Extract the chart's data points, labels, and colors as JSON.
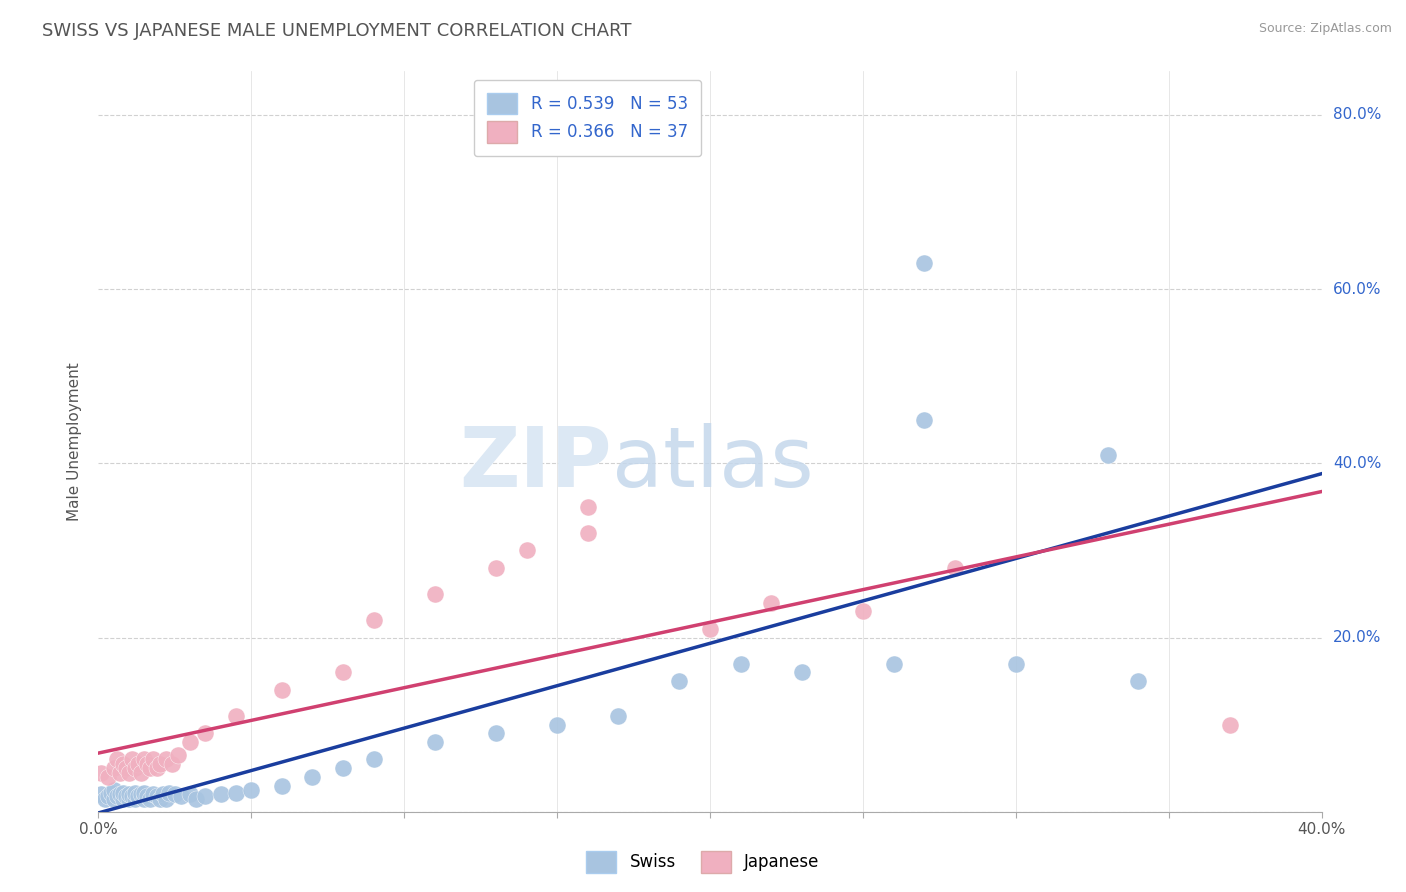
{
  "title": "SWISS VS JAPANESE MALE UNEMPLOYMENT CORRELATION CHART",
  "source": "Source: ZipAtlas.com",
  "ylabel": "Male Unemployment",
  "right_yticks": [
    "80.0%",
    "60.0%",
    "40.0%",
    "20.0%"
  ],
  "right_ytick_vals": [
    0.8,
    0.6,
    0.4,
    0.2
  ],
  "xmin": 0.0,
  "xmax": 0.4,
  "ymin": 0.0,
  "ymax": 0.85,
  "swiss_R": 0.539,
  "swiss_N": 53,
  "japanese_R": 0.366,
  "japanese_N": 37,
  "swiss_color": "#a8c4e0",
  "swiss_line_color": "#1a3d9e",
  "japanese_color": "#f0b0c0",
  "japanese_line_color": "#d04070",
  "legend_text_color": "#3366cc",
  "background_color": "#ffffff",
  "grid_color": "#cccccc",
  "title_color": "#555555",
  "swiss_x": [
    0.001,
    0.002,
    0.003,
    0.004,
    0.005,
    0.005,
    0.006,
    0.007,
    0.008,
    0.008,
    0.009,
    0.01,
    0.01,
    0.011,
    0.012,
    0.012,
    0.013,
    0.014,
    0.015,
    0.015,
    0.016,
    0.017,
    0.018,
    0.019,
    0.02,
    0.021,
    0.022,
    0.023,
    0.025,
    0.027,
    0.03,
    0.032,
    0.035,
    0.04,
    0.045,
    0.05,
    0.06,
    0.07,
    0.08,
    0.09,
    0.11,
    0.13,
    0.15,
    0.17,
    0.19,
    0.21,
    0.23,
    0.26,
    0.27,
    0.3,
    0.27,
    0.33,
    0.34
  ],
  "swiss_y": [
    0.02,
    0.015,
    0.018,
    0.022,
    0.015,
    0.025,
    0.018,
    0.02,
    0.015,
    0.022,
    0.018,
    0.015,
    0.02,
    0.018,
    0.015,
    0.022,
    0.018,
    0.02,
    0.015,
    0.022,
    0.018,
    0.015,
    0.02,
    0.018,
    0.015,
    0.02,
    0.015,
    0.022,
    0.02,
    0.018,
    0.02,
    0.015,
    0.018,
    0.02,
    0.022,
    0.025,
    0.03,
    0.04,
    0.05,
    0.06,
    0.08,
    0.09,
    0.1,
    0.11,
    0.15,
    0.17,
    0.16,
    0.17,
    0.63,
    0.17,
    0.45,
    0.41,
    0.15
  ],
  "japanese_x": [
    0.001,
    0.003,
    0.005,
    0.006,
    0.007,
    0.008,
    0.009,
    0.01,
    0.011,
    0.012,
    0.013,
    0.014,
    0.015,
    0.016,
    0.017,
    0.018,
    0.019,
    0.02,
    0.022,
    0.024,
    0.026,
    0.03,
    0.035,
    0.045,
    0.06,
    0.08,
    0.09,
    0.11,
    0.13,
    0.14,
    0.16,
    0.16,
    0.2,
    0.22,
    0.25,
    0.28,
    0.37
  ],
  "japanese_y": [
    0.045,
    0.04,
    0.05,
    0.06,
    0.045,
    0.055,
    0.05,
    0.045,
    0.06,
    0.05,
    0.055,
    0.045,
    0.06,
    0.055,
    0.05,
    0.06,
    0.05,
    0.055,
    0.06,
    0.055,
    0.065,
    0.08,
    0.09,
    0.11,
    0.14,
    0.16,
    0.22,
    0.25,
    0.28,
    0.3,
    0.32,
    0.35,
    0.21,
    0.24,
    0.23,
    0.28,
    0.1
  ]
}
